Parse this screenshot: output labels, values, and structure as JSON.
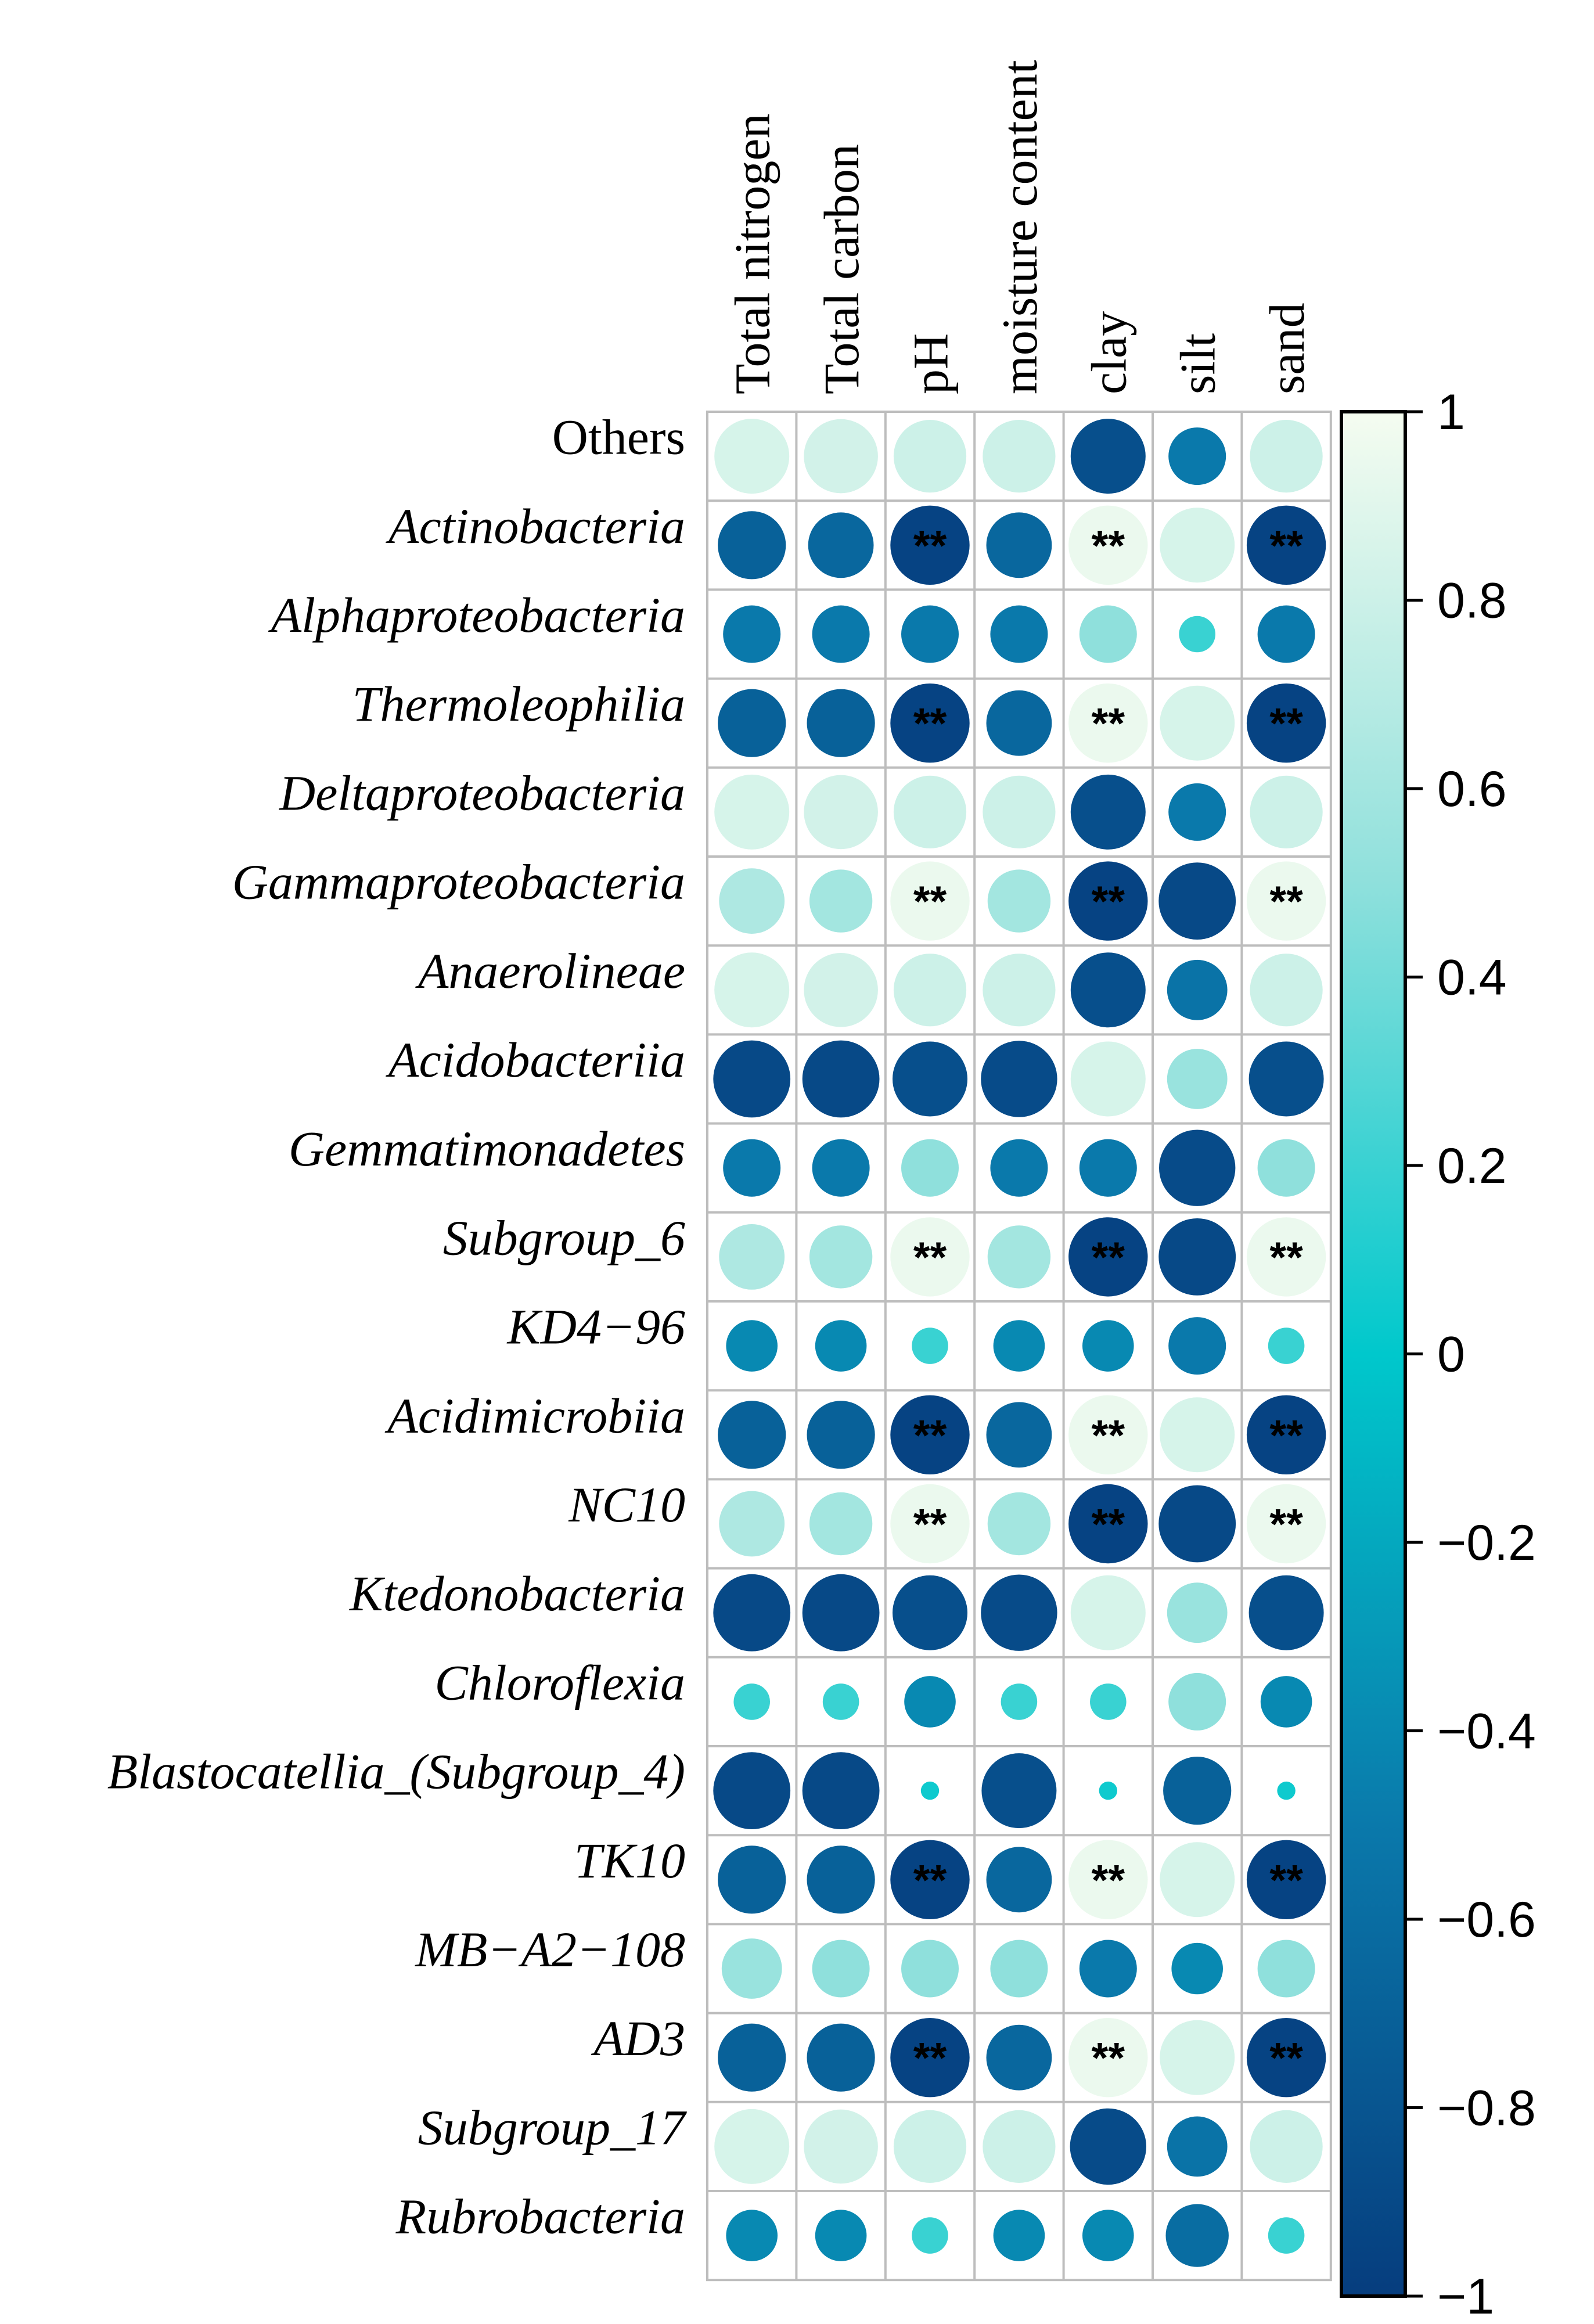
{
  "chart_data": {
    "type": "heatmap",
    "style": "circle correlation matrix",
    "columns": [
      "Total nitrogen",
      "Total carbon",
      "pH",
      "moisture content",
      "clay",
      "silt",
      "sand"
    ],
    "rows": [
      {
        "label": "Others",
        "italic": false,
        "values": [
          0.85,
          0.83,
          0.8,
          0.8,
          -0.85,
          -0.5,
          0.8
        ],
        "sig": [
          false,
          false,
          false,
          false,
          false,
          false,
          false
        ]
      },
      {
        "label": "Actinobacteria",
        "italic": true,
        "values": [
          -0.7,
          -0.65,
          -0.95,
          -0.65,
          0.95,
          0.85,
          -0.95
        ],
        "sig": [
          false,
          false,
          true,
          false,
          true,
          false,
          true
        ]
      },
      {
        "label": "Alphaproteobacteria",
        "italic": true,
        "values": [
          -0.5,
          -0.5,
          -0.5,
          -0.5,
          0.5,
          0.2,
          -0.5
        ],
        "sig": [
          false,
          false,
          false,
          false,
          false,
          false,
          false
        ]
      },
      {
        "label": "Thermoleophilia",
        "italic": true,
        "values": [
          -0.7,
          -0.7,
          -0.95,
          -0.65,
          0.95,
          0.85,
          -0.95
        ],
        "sig": [
          false,
          false,
          true,
          false,
          true,
          false,
          true
        ]
      },
      {
        "label": "Deltaproteobacteria",
        "italic": true,
        "values": [
          0.85,
          0.83,
          0.8,
          0.8,
          -0.85,
          -0.5,
          0.8
        ],
        "sig": [
          false,
          false,
          false,
          false,
          false,
          false,
          false
        ]
      },
      {
        "label": "Gammaproteobacteria",
        "italic": true,
        "values": [
          0.65,
          0.6,
          0.95,
          0.6,
          -0.95,
          -0.9,
          0.95
        ],
        "sig": [
          false,
          false,
          true,
          false,
          true,
          false,
          true
        ]
      },
      {
        "label": "Anaerolineae",
        "italic": true,
        "values": [
          0.85,
          0.83,
          0.8,
          0.8,
          -0.85,
          -0.55,
          0.8
        ],
        "sig": [
          false,
          false,
          false,
          false,
          false,
          false,
          false
        ]
      },
      {
        "label": "Acidobacteriia",
        "italic": true,
        "values": [
          -0.9,
          -0.9,
          -0.85,
          -0.88,
          0.85,
          0.55,
          -0.85
        ],
        "sig": [
          false,
          false,
          false,
          false,
          false,
          false,
          false
        ]
      },
      {
        "label": "Gemmatimonadetes",
        "italic": true,
        "values": [
          -0.5,
          -0.5,
          0.5,
          -0.5,
          -0.5,
          -0.88,
          0.5
        ],
        "sig": [
          false,
          false,
          false,
          false,
          false,
          false,
          false
        ]
      },
      {
        "label": "Subgroup_6",
        "italic": true,
        "values": [
          0.65,
          0.6,
          0.95,
          0.6,
          -0.95,
          -0.9,
          0.95
        ],
        "sig": [
          false,
          false,
          true,
          false,
          true,
          false,
          true
        ]
      },
      {
        "label": "KD4−96",
        "italic": true,
        "values": [
          -0.4,
          -0.4,
          0.2,
          -0.4,
          -0.4,
          -0.5,
          0.2
        ],
        "sig": [
          false,
          false,
          false,
          false,
          false,
          false,
          false
        ]
      },
      {
        "label": "Acidimicrobiia",
        "italic": true,
        "values": [
          -0.7,
          -0.7,
          -0.95,
          -0.65,
          0.95,
          0.85,
          -0.95
        ],
        "sig": [
          false,
          false,
          true,
          false,
          true,
          false,
          true
        ]
      },
      {
        "label": "NC10",
        "italic": true,
        "values": [
          0.65,
          0.6,
          0.95,
          0.6,
          -0.95,
          -0.9,
          0.95
        ],
        "sig": [
          false,
          false,
          true,
          false,
          true,
          false,
          true
        ]
      },
      {
        "label": "Ktedonobacteria",
        "italic": true,
        "values": [
          -0.9,
          -0.9,
          -0.85,
          -0.88,
          0.85,
          0.55,
          -0.85
        ],
        "sig": [
          false,
          false,
          false,
          false,
          false,
          false,
          false
        ]
      },
      {
        "label": "Chloroflexia",
        "italic": true,
        "values": [
          0.2,
          0.2,
          -0.4,
          0.2,
          0.2,
          0.5,
          -0.4
        ],
        "sig": [
          false,
          false,
          false,
          false,
          false,
          false,
          false
        ]
      },
      {
        "label": "Blastocatellia_(Subgroup_4)",
        "italic": true,
        "values": [
          -0.9,
          -0.9,
          0.05,
          -0.85,
          0.05,
          -0.7,
          0.05
        ],
        "sig": [
          false,
          false,
          false,
          false,
          false,
          false,
          false
        ]
      },
      {
        "label": "TK10",
        "italic": true,
        "values": [
          -0.7,
          -0.7,
          -0.95,
          -0.65,
          0.95,
          0.85,
          -0.95
        ],
        "sig": [
          false,
          false,
          true,
          false,
          true,
          false,
          true
        ]
      },
      {
        "label": "MB−A2−108",
        "italic": true,
        "values": [
          0.55,
          0.5,
          0.5,
          0.5,
          -0.5,
          -0.4,
          0.5
        ],
        "sig": [
          false,
          false,
          false,
          false,
          false,
          false,
          false
        ]
      },
      {
        "label": "AD3",
        "italic": true,
        "values": [
          -0.7,
          -0.7,
          -0.95,
          -0.65,
          0.95,
          0.85,
          -0.95
        ],
        "sig": [
          false,
          false,
          true,
          false,
          true,
          false,
          true
        ]
      },
      {
        "label": "Subgroup_17",
        "italic": true,
        "values": [
          0.85,
          0.83,
          0.8,
          0.8,
          -0.88,
          -0.55,
          0.8
        ],
        "sig": [
          false,
          false,
          false,
          false,
          false,
          false,
          false
        ]
      },
      {
        "label": "Rubrobacteria",
        "italic": true,
        "values": [
          -0.4,
          -0.4,
          0.2,
          -0.4,
          -0.4,
          -0.6,
          0.2
        ],
        "sig": [
          false,
          false,
          false,
          false,
          false,
          false,
          false
        ]
      }
    ],
    "significance_marker": "**",
    "colorbar": {
      "range": [
        -1,
        1
      ],
      "ticks": [
        "1",
        "0.8",
        "0.6",
        "0.4",
        "0.2",
        "0",
        "−0.2",
        "−0.4",
        "−0.6",
        "−0.8",
        "−1"
      ],
      "tick_values": [
        1,
        0.8,
        0.6,
        0.4,
        0.2,
        0,
        -0.2,
        -0.4,
        -0.6,
        -0.8,
        -1
      ],
      "colors": {
        "low": "#063d7e",
        "mid": "#00c8cc",
        "high": "#f5fcf0"
      }
    }
  }
}
